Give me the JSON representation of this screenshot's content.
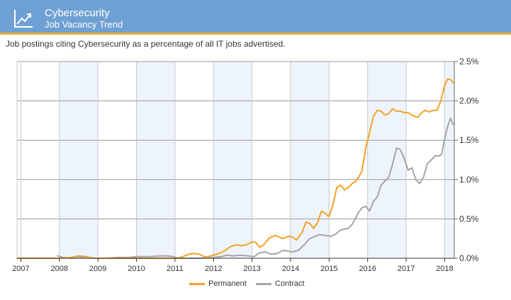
{
  "header": {
    "title": "Cybersecurity",
    "subtitle": "Job Vacancy Trend",
    "icon": "trend-chart-icon",
    "accent_color": "#f2a93b",
    "background_color": "#6fa0d3"
  },
  "description": "Job postings citing Cybersecurity as a percentage of all IT jobs advertised.",
  "chart_data": {
    "type": "line",
    "title": "",
    "xlabel": "",
    "ylabel": "",
    "x_ticks": [
      "2007",
      "2008",
      "2009",
      "2010",
      "2011",
      "2012",
      "2013",
      "2014",
      "2015",
      "2016",
      "2017",
      "2018"
    ],
    "xlim": [
      2006.9,
      2018.25
    ],
    "y_ticks": [
      "0.0%",
      "0.5%",
      "1.0%",
      "1.5%",
      "2.0%",
      "2.5%"
    ],
    "ylim": [
      0,
      2.5
    ],
    "y_axis_position": "right",
    "grid": true,
    "alternating_year_bands": true,
    "legend_position": "bottom-center",
    "series": [
      {
        "name": "Permanent",
        "color": "#f2a128",
        "points": [
          [
            2006.9,
            0.0
          ],
          [
            2007.5,
            0.0
          ],
          [
            2008.0,
            0.0
          ],
          [
            2008.3,
            0.01
          ],
          [
            2008.5,
            0.03
          ],
          [
            2008.7,
            0.02
          ],
          [
            2008.9,
            0.0
          ],
          [
            2009.2,
            0.0
          ],
          [
            2009.6,
            0.0
          ],
          [
            2010.0,
            0.0
          ],
          [
            2010.5,
            0.0
          ],
          [
            2010.9,
            0.0
          ],
          [
            2011.05,
            0.0
          ],
          [
            2011.2,
            0.02
          ],
          [
            2011.35,
            0.05
          ],
          [
            2011.5,
            0.06
          ],
          [
            2011.65,
            0.05
          ],
          [
            2011.75,
            0.02
          ],
          [
            2011.85,
            0.02
          ],
          [
            2012.0,
            0.04
          ],
          [
            2012.15,
            0.06
          ],
          [
            2012.3,
            0.1
          ],
          [
            2012.45,
            0.15
          ],
          [
            2012.6,
            0.17
          ],
          [
            2012.75,
            0.16
          ],
          [
            2012.9,
            0.18
          ],
          [
            2013.0,
            0.21
          ],
          [
            2013.1,
            0.2
          ],
          [
            2013.2,
            0.14
          ],
          [
            2013.3,
            0.17
          ],
          [
            2013.45,
            0.26
          ],
          [
            2013.6,
            0.29
          ],
          [
            2013.7,
            0.27
          ],
          [
            2013.8,
            0.25
          ],
          [
            2013.95,
            0.28
          ],
          [
            2014.05,
            0.27
          ],
          [
            2014.15,
            0.23
          ],
          [
            2014.3,
            0.33
          ],
          [
            2014.4,
            0.46
          ],
          [
            2014.5,
            0.44
          ],
          [
            2014.6,
            0.38
          ],
          [
            2014.7,
            0.45
          ],
          [
            2014.8,
            0.6
          ],
          [
            2014.9,
            0.57
          ],
          [
            2015.0,
            0.53
          ],
          [
            2015.1,
            0.68
          ],
          [
            2015.2,
            0.9
          ],
          [
            2015.3,
            0.93
          ],
          [
            2015.4,
            0.87
          ],
          [
            2015.5,
            0.9
          ],
          [
            2015.6,
            0.95
          ],
          [
            2015.7,
            0.98
          ],
          [
            2015.85,
            1.1
          ],
          [
            2015.95,
            1.4
          ],
          [
            2016.05,
            1.6
          ],
          [
            2016.15,
            1.8
          ],
          [
            2016.25,
            1.88
          ],
          [
            2016.35,
            1.87
          ],
          [
            2016.45,
            1.82
          ],
          [
            2016.55,
            1.84
          ],
          [
            2016.65,
            1.9
          ],
          [
            2016.75,
            1.87
          ],
          [
            2016.85,
            1.87
          ],
          [
            2016.95,
            1.85
          ],
          [
            2017.05,
            1.85
          ],
          [
            2017.15,
            1.82
          ],
          [
            2017.3,
            1.79
          ],
          [
            2017.4,
            1.85
          ],
          [
            2017.5,
            1.88
          ],
          [
            2017.6,
            1.86
          ],
          [
            2017.7,
            1.88
          ],
          [
            2017.8,
            1.88
          ],
          [
            2017.9,
            2.0
          ],
          [
            2018.0,
            2.2
          ],
          [
            2018.08,
            2.28
          ],
          [
            2018.15,
            2.27
          ],
          [
            2018.22,
            2.23
          ]
        ]
      },
      {
        "name": "Contract",
        "color": "#a5a5a5",
        "points": [
          [
            2007.95,
            0.03
          ],
          [
            2008.1,
            0.01
          ],
          [
            2008.3,
            0.0
          ],
          [
            2008.6,
            0.01
          ],
          [
            2008.9,
            0.0
          ],
          [
            2009.2,
            0.0
          ],
          [
            2009.5,
            0.01
          ],
          [
            2009.8,
            0.01
          ],
          [
            2010.0,
            0.02
          ],
          [
            2010.3,
            0.02
          ],
          [
            2010.6,
            0.03
          ],
          [
            2010.8,
            0.03
          ],
          [
            2010.95,
            0.02
          ],
          [
            2011.1,
            0.0
          ],
          [
            2011.4,
            0.0
          ],
          [
            2011.7,
            0.0
          ],
          [
            2012.0,
            0.01
          ],
          [
            2012.2,
            0.02
          ],
          [
            2012.35,
            0.04
          ],
          [
            2012.5,
            0.03
          ],
          [
            2012.7,
            0.04
          ],
          [
            2012.9,
            0.03
          ],
          [
            2013.05,
            0.02
          ],
          [
            2013.2,
            0.07
          ],
          [
            2013.35,
            0.08
          ],
          [
            2013.5,
            0.05
          ],
          [
            2013.65,
            0.06
          ],
          [
            2013.8,
            0.1
          ],
          [
            2013.95,
            0.09
          ],
          [
            2014.05,
            0.08
          ],
          [
            2014.2,
            0.1
          ],
          [
            2014.35,
            0.17
          ],
          [
            2014.5,
            0.25
          ],
          [
            2014.6,
            0.27
          ],
          [
            2014.75,
            0.3
          ],
          [
            2014.9,
            0.29
          ],
          [
            2015.05,
            0.28
          ],
          [
            2015.15,
            0.3
          ],
          [
            2015.3,
            0.36
          ],
          [
            2015.4,
            0.37
          ],
          [
            2015.5,
            0.38
          ],
          [
            2015.6,
            0.43
          ],
          [
            2015.75,
            0.57
          ],
          [
            2015.85,
            0.64
          ],
          [
            2015.95,
            0.66
          ],
          [
            2016.05,
            0.6
          ],
          [
            2016.15,
            0.72
          ],
          [
            2016.25,
            0.78
          ],
          [
            2016.35,
            0.93
          ],
          [
            2016.45,
            0.98
          ],
          [
            2016.55,
            1.03
          ],
          [
            2016.65,
            1.2
          ],
          [
            2016.75,
            1.4
          ],
          [
            2016.85,
            1.38
          ],
          [
            2016.95,
            1.27
          ],
          [
            2017.05,
            1.12
          ],
          [
            2017.15,
            1.15
          ],
          [
            2017.25,
            1.0
          ],
          [
            2017.35,
            0.95
          ],
          [
            2017.45,
            1.03
          ],
          [
            2017.55,
            1.2
          ],
          [
            2017.65,
            1.25
          ],
          [
            2017.75,
            1.3
          ],
          [
            2017.85,
            1.3
          ],
          [
            2017.92,
            1.32
          ],
          [
            2018.0,
            1.52
          ],
          [
            2018.08,
            1.68
          ],
          [
            2018.15,
            1.78
          ],
          [
            2018.22,
            1.7
          ]
        ]
      }
    ]
  }
}
